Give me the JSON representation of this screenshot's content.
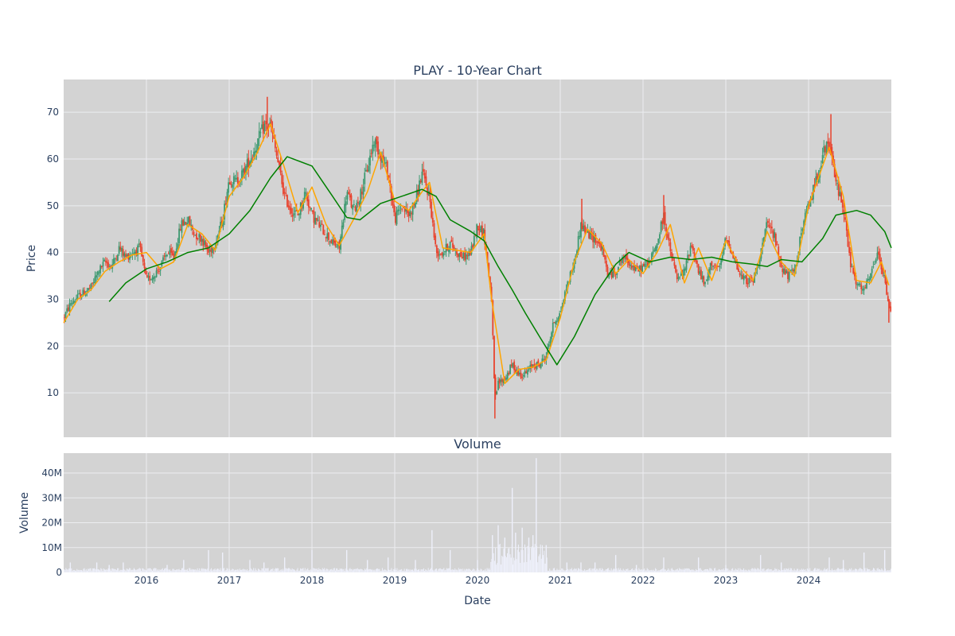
{
  "chart_data": [
    {
      "type": "candlestick",
      "title": "PLAY - 10-Year Chart",
      "ylabel": "Price",
      "xlabel": "",
      "ylim": [
        0.5,
        77
      ],
      "xlim": [
        2015.0,
        2025.0
      ],
      "y_ticks": [
        10,
        20,
        30,
        40,
        50,
        60,
        70
      ],
      "x_ticks": [
        "2016",
        "2017",
        "2018",
        "2019",
        "2020",
        "2021",
        "2022",
        "2023",
        "2024"
      ],
      "colors": {
        "up": "#3d9970",
        "down": "#e8432e",
        "ma_short": "#ffa500",
        "ma_long": "#008000",
        "plot_bg": "#d3d3d3",
        "grid": "#ecedf0"
      },
      "grid": true,
      "price_series": [
        {
          "x": 2015.0,
          "y": 26
        },
        {
          "x": 2015.08,
          "y": 29
        },
        {
          "x": 2015.17,
          "y": 30.5
        },
        {
          "x": 2015.25,
          "y": 31.5
        },
        {
          "x": 2015.33,
          "y": 32.5
        },
        {
          "x": 2015.42,
          "y": 36
        },
        {
          "x": 2015.5,
          "y": 38
        },
        {
          "x": 2015.58,
          "y": 37
        },
        {
          "x": 2015.67,
          "y": 41
        },
        {
          "x": 2015.75,
          "y": 39
        },
        {
          "x": 2015.83,
          "y": 40
        },
        {
          "x": 2015.92,
          "y": 41
        },
        {
          "x": 2016.0,
          "y": 34
        },
        {
          "x": 2016.08,
          "y": 35
        },
        {
          "x": 2016.17,
          "y": 37
        },
        {
          "x": 2016.25,
          "y": 40
        },
        {
          "x": 2016.33,
          "y": 39
        },
        {
          "x": 2016.42,
          "y": 46
        },
        {
          "x": 2016.5,
          "y": 47
        },
        {
          "x": 2016.58,
          "y": 44
        },
        {
          "x": 2016.67,
          "y": 43
        },
        {
          "x": 2016.75,
          "y": 40
        },
        {
          "x": 2016.83,
          "y": 42
        },
        {
          "x": 2016.92,
          "y": 47
        },
        {
          "x": 2017.0,
          "y": 56
        },
        {
          "x": 2017.08,
          "y": 55
        },
        {
          "x": 2017.17,
          "y": 57
        },
        {
          "x": 2017.25,
          "y": 60
        },
        {
          "x": 2017.33,
          "y": 63
        },
        {
          "x": 2017.42,
          "y": 67
        },
        {
          "x": 2017.5,
          "y": 67
        },
        {
          "x": 2017.58,
          "y": 60
        },
        {
          "x": 2017.67,
          "y": 52
        },
        {
          "x": 2017.75,
          "y": 49
        },
        {
          "x": 2017.83,
          "y": 48
        },
        {
          "x": 2017.92,
          "y": 53
        },
        {
          "x": 2018.0,
          "y": 48
        },
        {
          "x": 2018.08,
          "y": 46
        },
        {
          "x": 2018.17,
          "y": 44
        },
        {
          "x": 2018.25,
          "y": 42
        },
        {
          "x": 2018.33,
          "y": 41
        },
        {
          "x": 2018.42,
          "y": 53
        },
        {
          "x": 2018.5,
          "y": 49
        },
        {
          "x": 2018.58,
          "y": 52
        },
        {
          "x": 2018.67,
          "y": 58
        },
        {
          "x": 2018.75,
          "y": 64
        },
        {
          "x": 2018.83,
          "y": 61
        },
        {
          "x": 2018.92,
          "y": 57
        },
        {
          "x": 2019.0,
          "y": 47
        },
        {
          "x": 2019.08,
          "y": 50
        },
        {
          "x": 2019.17,
          "y": 48
        },
        {
          "x": 2019.25,
          "y": 51
        },
        {
          "x": 2019.33,
          "y": 57
        },
        {
          "x": 2019.42,
          "y": 52
        },
        {
          "x": 2019.5,
          "y": 40
        },
        {
          "x": 2019.58,
          "y": 40
        },
        {
          "x": 2019.67,
          "y": 42
        },
        {
          "x": 2019.75,
          "y": 40
        },
        {
          "x": 2019.83,
          "y": 39
        },
        {
          "x": 2019.92,
          "y": 40
        },
        {
          "x": 2020.0,
          "y": 46
        },
        {
          "x": 2020.08,
          "y": 44
        },
        {
          "x": 2020.17,
          "y": 30
        },
        {
          "x": 2020.21,
          "y": 8
        },
        {
          "x": 2020.25,
          "y": 12
        },
        {
          "x": 2020.33,
          "y": 13
        },
        {
          "x": 2020.42,
          "y": 16
        },
        {
          "x": 2020.5,
          "y": 14
        },
        {
          "x": 2020.58,
          "y": 14
        },
        {
          "x": 2020.67,
          "y": 16
        },
        {
          "x": 2020.75,
          "y": 16
        },
        {
          "x": 2020.83,
          "y": 18
        },
        {
          "x": 2020.92,
          "y": 25
        },
        {
          "x": 2021.0,
          "y": 27
        },
        {
          "x": 2021.08,
          "y": 33
        },
        {
          "x": 2021.17,
          "y": 38
        },
        {
          "x": 2021.25,
          "y": 46
        },
        {
          "x": 2021.33,
          "y": 44
        },
        {
          "x": 2021.42,
          "y": 43
        },
        {
          "x": 2021.5,
          "y": 41
        },
        {
          "x": 2021.58,
          "y": 35
        },
        {
          "x": 2021.67,
          "y": 36
        },
        {
          "x": 2021.75,
          "y": 39
        },
        {
          "x": 2021.83,
          "y": 38
        },
        {
          "x": 2021.92,
          "y": 36
        },
        {
          "x": 2022.0,
          "y": 37
        },
        {
          "x": 2022.08,
          "y": 38
        },
        {
          "x": 2022.17,
          "y": 42
        },
        {
          "x": 2022.25,
          "y": 48
        },
        {
          "x": 2022.33,
          "y": 40
        },
        {
          "x": 2022.42,
          "y": 34
        },
        {
          "x": 2022.5,
          "y": 36
        },
        {
          "x": 2022.58,
          "y": 42
        },
        {
          "x": 2022.67,
          "y": 36
        },
        {
          "x": 2022.75,
          "y": 33
        },
        {
          "x": 2022.83,
          "y": 38
        },
        {
          "x": 2022.92,
          "y": 36
        },
        {
          "x": 2023.0,
          "y": 43
        },
        {
          "x": 2023.08,
          "y": 40
        },
        {
          "x": 2023.17,
          "y": 35
        },
        {
          "x": 2023.25,
          "y": 34
        },
        {
          "x": 2023.33,
          "y": 34
        },
        {
          "x": 2023.42,
          "y": 40
        },
        {
          "x": 2023.5,
          "y": 46
        },
        {
          "x": 2023.58,
          "y": 44
        },
        {
          "x": 2023.67,
          "y": 37
        },
        {
          "x": 2023.75,
          "y": 35
        },
        {
          "x": 2023.83,
          "y": 36
        },
        {
          "x": 2023.92,
          "y": 45
        },
        {
          "x": 2024.0,
          "y": 50
        },
        {
          "x": 2024.08,
          "y": 55
        },
        {
          "x": 2024.17,
          "y": 61
        },
        {
          "x": 2024.25,
          "y": 63
        },
        {
          "x": 2024.33,
          "y": 55
        },
        {
          "x": 2024.42,
          "y": 50
        },
        {
          "x": 2024.5,
          "y": 38
        },
        {
          "x": 2024.58,
          "y": 33
        },
        {
          "x": 2024.67,
          "y": 32
        },
        {
          "x": 2024.75,
          "y": 35
        },
        {
          "x": 2024.83,
          "y": 40
        },
        {
          "x": 2024.92,
          "y": 34
        },
        {
          "x": 2024.97,
          "y": 28
        }
      ],
      "ma_short": [
        {
          "x": 2015.0,
          "y": 25
        },
        {
          "x": 2015.17,
          "y": 30
        },
        {
          "x": 2015.33,
          "y": 32
        },
        {
          "x": 2015.5,
          "y": 36
        },
        {
          "x": 2015.67,
          "y": 38
        },
        {
          "x": 2015.83,
          "y": 39.5
        },
        {
          "x": 2016.0,
          "y": 40
        },
        {
          "x": 2016.17,
          "y": 36.5
        },
        {
          "x": 2016.33,
          "y": 38
        },
        {
          "x": 2016.5,
          "y": 46
        },
        {
          "x": 2016.67,
          "y": 44
        },
        {
          "x": 2016.83,
          "y": 40.5
        },
        {
          "x": 2017.0,
          "y": 52
        },
        {
          "x": 2017.17,
          "y": 56
        },
        {
          "x": 2017.33,
          "y": 61
        },
        {
          "x": 2017.5,
          "y": 67.5
        },
        {
          "x": 2017.67,
          "y": 58
        },
        {
          "x": 2017.83,
          "y": 48.5
        },
        {
          "x": 2018.0,
          "y": 54
        },
        {
          "x": 2018.17,
          "y": 46
        },
        {
          "x": 2018.33,
          "y": 41.5
        },
        {
          "x": 2018.5,
          "y": 47
        },
        {
          "x": 2018.67,
          "y": 53
        },
        {
          "x": 2018.83,
          "y": 61.5
        },
        {
          "x": 2019.0,
          "y": 51
        },
        {
          "x": 2019.17,
          "y": 49
        },
        {
          "x": 2019.33,
          "y": 53
        },
        {
          "x": 2019.42,
          "y": 55
        },
        {
          "x": 2019.58,
          "y": 41
        },
        {
          "x": 2019.75,
          "y": 40.5
        },
        {
          "x": 2019.92,
          "y": 40
        },
        {
          "x": 2020.08,
          "y": 44
        },
        {
          "x": 2020.17,
          "y": 30
        },
        {
          "x": 2020.33,
          "y": 12
        },
        {
          "x": 2020.5,
          "y": 15
        },
        {
          "x": 2020.67,
          "y": 15.5
        },
        {
          "x": 2020.83,
          "y": 17
        },
        {
          "x": 2021.0,
          "y": 26
        },
        {
          "x": 2021.17,
          "y": 38
        },
        {
          "x": 2021.33,
          "y": 45
        },
        {
          "x": 2021.5,
          "y": 42
        },
        {
          "x": 2021.67,
          "y": 35.5
        },
        {
          "x": 2021.83,
          "y": 38.5
        },
        {
          "x": 2022.0,
          "y": 35.5
        },
        {
          "x": 2022.17,
          "y": 40
        },
        {
          "x": 2022.33,
          "y": 46
        },
        {
          "x": 2022.5,
          "y": 33.5
        },
        {
          "x": 2022.67,
          "y": 41
        },
        {
          "x": 2022.83,
          "y": 34
        },
        {
          "x": 2023.0,
          "y": 42.5
        },
        {
          "x": 2023.17,
          "y": 37
        },
        {
          "x": 2023.33,
          "y": 34
        },
        {
          "x": 2023.5,
          "y": 44.5
        },
        {
          "x": 2023.67,
          "y": 38
        },
        {
          "x": 2023.83,
          "y": 35
        },
        {
          "x": 2024.0,
          "y": 50
        },
        {
          "x": 2024.25,
          "y": 62.5
        },
        {
          "x": 2024.42,
          "y": 52
        },
        {
          "x": 2024.58,
          "y": 34
        },
        {
          "x": 2024.75,
          "y": 33.5
        },
        {
          "x": 2024.88,
          "y": 38
        },
        {
          "x": 2024.97,
          "y": 33
        }
      ],
      "ma_long": [
        {
          "x": 2015.55,
          "y": 29.5
        },
        {
          "x": 2015.75,
          "y": 33.5
        },
        {
          "x": 2016.0,
          "y": 36.5
        },
        {
          "x": 2016.25,
          "y": 38
        },
        {
          "x": 2016.5,
          "y": 40
        },
        {
          "x": 2016.75,
          "y": 41
        },
        {
          "x": 2017.0,
          "y": 44
        },
        {
          "x": 2017.25,
          "y": 49
        },
        {
          "x": 2017.5,
          "y": 56
        },
        {
          "x": 2017.7,
          "y": 60.5
        },
        {
          "x": 2018.0,
          "y": 58.5
        },
        {
          "x": 2018.25,
          "y": 52
        },
        {
          "x": 2018.42,
          "y": 47.5
        },
        {
          "x": 2018.58,
          "y": 47
        },
        {
          "x": 2018.83,
          "y": 50.5
        },
        {
          "x": 2019.08,
          "y": 52
        },
        {
          "x": 2019.33,
          "y": 53.5
        },
        {
          "x": 2019.5,
          "y": 52
        },
        {
          "x": 2019.67,
          "y": 47
        },
        {
          "x": 2019.92,
          "y": 44.5
        },
        {
          "x": 2020.08,
          "y": 42.5
        },
        {
          "x": 2020.25,
          "y": 37
        },
        {
          "x": 2020.42,
          "y": 32
        },
        {
          "x": 2020.58,
          "y": 27
        },
        {
          "x": 2020.75,
          "y": 22
        },
        {
          "x": 2020.96,
          "y": 16
        },
        {
          "x": 2021.17,
          "y": 22
        },
        {
          "x": 2021.42,
          "y": 31
        },
        {
          "x": 2021.67,
          "y": 37.5
        },
        {
          "x": 2021.83,
          "y": 40
        },
        {
          "x": 2022.08,
          "y": 38
        },
        {
          "x": 2022.33,
          "y": 39
        },
        {
          "x": 2022.58,
          "y": 38.5
        },
        {
          "x": 2022.83,
          "y": 39
        },
        {
          "x": 2023.08,
          "y": 38
        },
        {
          "x": 2023.33,
          "y": 37.5
        },
        {
          "x": 2023.5,
          "y": 37
        },
        {
          "x": 2023.67,
          "y": 38.5
        },
        {
          "x": 2023.92,
          "y": 38
        },
        {
          "x": 2024.17,
          "y": 43
        },
        {
          "x": 2024.33,
          "y": 48
        },
        {
          "x": 2024.58,
          "y": 49
        },
        {
          "x": 2024.75,
          "y": 48
        },
        {
          "x": 2024.92,
          "y": 44.5
        },
        {
          "x": 2025.0,
          "y": 41
        }
      ]
    },
    {
      "type": "bar",
      "title": "Volume",
      "xlabel": "Date",
      "ylabel": "Volume",
      "ylim": [
        0,
        48
      ],
      "xlim": [
        2015.0,
        2025.0
      ],
      "y_ticks": [
        0,
        10,
        20,
        30,
        40
      ],
      "y_tick_labels": [
        "0",
        "10M",
        "20M",
        "30M",
        "40M"
      ],
      "x_ticks": [
        "2016",
        "2017",
        "2018",
        "2019",
        "2020",
        "2021",
        "2022",
        "2023",
        "2024"
      ],
      "unit": "M",
      "colors": {
        "bar": "#eef0fb",
        "plot_bg": "#d3d3d3",
        "grid": "#ecedf0"
      },
      "spikes": [
        {
          "x": 2015.08,
          "y": 4
        },
        {
          "x": 2015.4,
          "y": 4
        },
        {
          "x": 2015.55,
          "y": 3
        },
        {
          "x": 2015.72,
          "y": 4
        },
        {
          "x": 2016.25,
          "y": 3
        },
        {
          "x": 2016.45,
          "y": 5
        },
        {
          "x": 2016.75,
          "y": 9
        },
        {
          "x": 2016.92,
          "y": 8
        },
        {
          "x": 2017.25,
          "y": 5
        },
        {
          "x": 2017.42,
          "y": 4
        },
        {
          "x": 2017.67,
          "y": 6
        },
        {
          "x": 2018.0,
          "y": 9
        },
        {
          "x": 2018.42,
          "y": 9
        },
        {
          "x": 2018.67,
          "y": 5
        },
        {
          "x": 2018.92,
          "y": 6
        },
        {
          "x": 2019.25,
          "y": 5
        },
        {
          "x": 2019.45,
          "y": 17
        },
        {
          "x": 2019.67,
          "y": 9
        },
        {
          "x": 2020.0,
          "y": 5
        },
        {
          "x": 2020.18,
          "y": 15
        },
        {
          "x": 2020.25,
          "y": 19
        },
        {
          "x": 2020.33,
          "y": 14
        },
        {
          "x": 2020.42,
          "y": 34
        },
        {
          "x": 2020.46,
          "y": 16
        },
        {
          "x": 2020.54,
          "y": 18
        },
        {
          "x": 2020.62,
          "y": 14
        },
        {
          "x": 2020.67,
          "y": 15
        },
        {
          "x": 2020.71,
          "y": 46
        },
        {
          "x": 2020.79,
          "y": 7
        },
        {
          "x": 2020.83,
          "y": 11
        },
        {
          "x": 2021.08,
          "y": 4
        },
        {
          "x": 2021.25,
          "y": 4
        },
        {
          "x": 2021.42,
          "y": 4
        },
        {
          "x": 2021.67,
          "y": 7
        },
        {
          "x": 2021.92,
          "y": 3
        },
        {
          "x": 2022.25,
          "y": 6
        },
        {
          "x": 2022.67,
          "y": 6
        },
        {
          "x": 2023.0,
          "y": 3
        },
        {
          "x": 2023.42,
          "y": 7
        },
        {
          "x": 2023.67,
          "y": 4
        },
        {
          "x": 2024.25,
          "y": 6
        },
        {
          "x": 2024.42,
          "y": 5
        },
        {
          "x": 2024.67,
          "y": 8
        },
        {
          "x": 2024.92,
          "y": 9
        }
      ],
      "baseline": 1.2
    }
  ]
}
